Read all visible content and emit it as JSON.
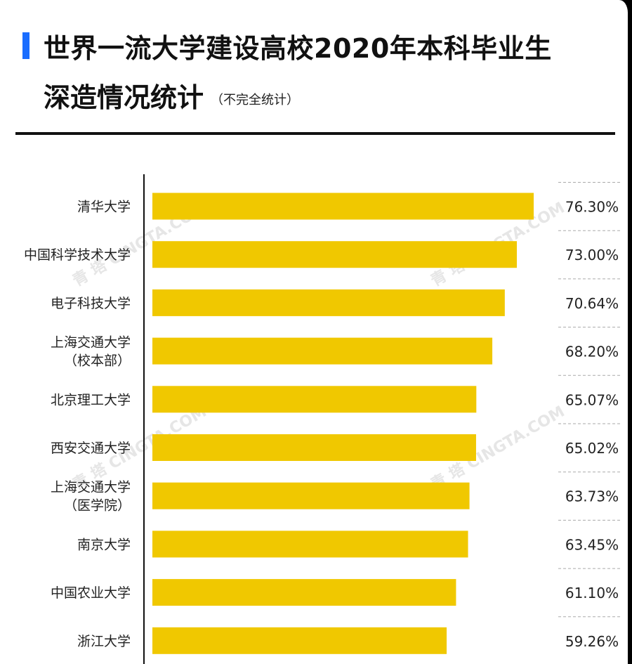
{
  "header": {
    "title_line1": "世界一流大学建设高校2020年本科毕业生",
    "title_line2": "深造情况统计",
    "subtitle": "（不完全统计）"
  },
  "watermark": "青 塔 CINGTA.COM",
  "colors": {
    "accent": "#1a6dff",
    "bar": "#f0c800",
    "text": "#111111"
  },
  "chart_data": {
    "type": "bar",
    "orientation": "horizontal",
    "categories": [
      [
        "清华大学"
      ],
      [
        "中国科学技术大学"
      ],
      [
        "电子科技大学"
      ],
      [
        "上海交通大学",
        "（校本部）"
      ],
      [
        "北京理工大学"
      ],
      [
        "西安交通大学"
      ],
      [
        "上海交通大学",
        "（医学院）"
      ],
      [
        "南京大学"
      ],
      [
        "中国农业大学"
      ],
      [
        "浙江大学"
      ]
    ],
    "values": [
      76.3,
      73.0,
      70.64,
      68.2,
      65.07,
      65.02,
      63.73,
      63.45,
      61.1,
      59.26
    ],
    "value_labels": [
      "76.30%",
      "73.00%",
      "70.64%",
      "68.20%",
      "65.07%",
      "65.02%",
      "63.73%",
      "63.45%",
      "61.10%",
      "59.26%"
    ],
    "xlim": [
      0,
      80
    ],
    "grid": false,
    "legend": "none"
  }
}
